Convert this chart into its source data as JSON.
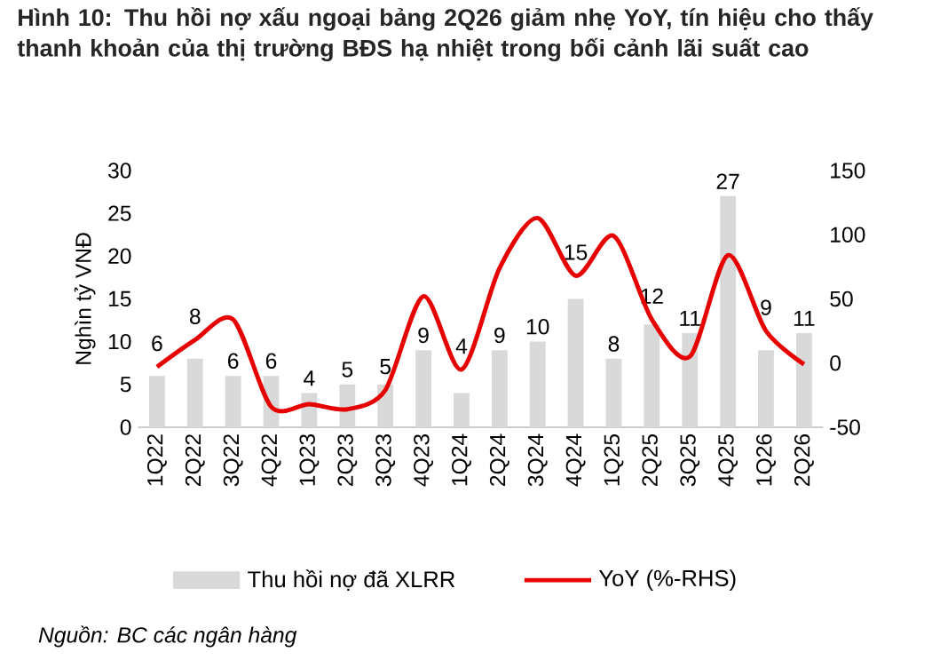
{
  "chart_data": {
    "type": "bar",
    "title": "Hình 10: Thu hồi nợ xấu ngoại bảng 2Q26 giảm nhẹ YoY, tín hiệu cho thấy thanh khoản của thị trường BĐS hạ nhiệt trong bối cảnh lãi suất cao",
    "ylabel": "Nghìn tỷ VNĐ",
    "categories": [
      "1Q22",
      "2Q22",
      "3Q22",
      "4Q22",
      "1Q23",
      "2Q23",
      "3Q23",
      "4Q23",
      "1Q24",
      "2Q24",
      "3Q24",
      "4Q24",
      "1Q25",
      "2Q25",
      "3Q25",
      "4Q25",
      "1Q26",
      "2Q26"
    ],
    "series": [
      {
        "name": "Thu hồi nợ đã XLRR",
        "color": "#d9d9d9",
        "values": [
          6,
          8,
          6,
          6,
          4,
          5,
          5,
          9,
          4,
          9,
          10,
          15,
          8,
          12,
          11,
          27,
          9,
          11
        ],
        "value_labels": [
          "6",
          "8",
          "6",
          "6",
          "4",
          "5",
          "5",
          "9",
          "4",
          "9",
          "10",
          "15",
          "8",
          "12",
          "11",
          "27",
          "9",
          "11"
        ]
      },
      {
        "name": "YoY (%-RHS)",
        "type": "line",
        "axis": "y2",
        "color": "#e60000",
        "values": [
          -3,
          18,
          34,
          -34,
          -32,
          -36,
          -21,
          52,
          -5,
          74,
          113,
          68,
          99,
          34,
          5,
          84,
          25,
          -1
        ]
      }
    ],
    "ylim": [
      0,
      30
    ],
    "yticks": [
      0,
      5,
      10,
      15,
      20,
      25,
      30
    ],
    "y2lim": [
      -50,
      150
    ],
    "y2ticks": [
      -50,
      0,
      50,
      100,
      150
    ],
    "legend": "bottom",
    "annotations": [
      "Nguồn: BC các ngân hàng"
    ]
  }
}
